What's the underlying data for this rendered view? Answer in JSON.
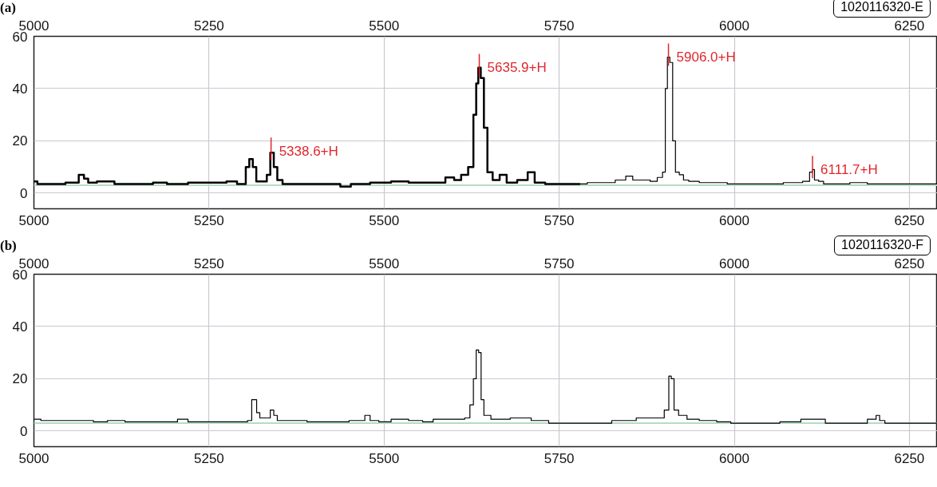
{
  "chart_data": [
    {
      "type": "step",
      "title": "(a)",
      "subtitle": "1020116320-E",
      "xlim": [
        5000,
        6290
      ],
      "xticks": [
        5000,
        5250,
        5500,
        5750,
        6000,
        6250
      ],
      "x2lim": [
        5000,
        6290
      ],
      "x2ticks": [
        5000,
        5250,
        5500,
        5750,
        6000,
        6250
      ],
      "ylim": [
        -6,
        60
      ],
      "yticks": [
        0,
        20,
        40,
        60
      ],
      "grid": true,
      "series": [
        {
          "color": "#000000",
          "x": [
            5000,
            5010,
            5030,
            5060,
            5068,
            5075,
            5080,
            5100,
            5130,
            5160,
            5180,
            5200,
            5240,
            5270,
            5280,
            5300,
            5305,
            5310,
            5315,
            5320,
            5330,
            5335,
            5340,
            5345,
            5350,
            5360,
            5400,
            5430,
            5445,
            5460,
            5500,
            5520,
            5550,
            5580,
            5595,
            5605,
            5615,
            5625,
            5630,
            5633,
            5636,
            5640,
            5645,
            5650,
            5660,
            5670,
            5680,
            5700,
            5710,
            5720,
            5740,
            5780
          ],
          "values": [
            4.5,
            3.5,
            3.5,
            4,
            7,
            5.5,
            4,
            4.5,
            3.5,
            3.5,
            4,
            3.5,
            4,
            4,
            4.5,
            3.5,
            10,
            13,
            10,
            4.5,
            4.5,
            7,
            15.5,
            10,
            5,
            3.5,
            3.5,
            3.5,
            2.5,
            3.5,
            4,
            4.5,
            4,
            4,
            6,
            5,
            7,
            10,
            30,
            42,
            48,
            44,
            25,
            8,
            5,
            7,
            4,
            5,
            8,
            4,
            3.5,
            3.5
          ]
        },
        {
          "color": "#000000",
          "x": [
            5780,
            5800,
            5820,
            5840,
            5850,
            5860,
            5875,
            5885,
            5895,
            5900,
            5903,
            5906,
            5910,
            5914,
            5918,
            5925,
            5930,
            5940,
            5960,
            5980,
            6000,
            6050,
            6090,
            6105,
            6110,
            6113,
            6116,
            6125,
            6130,
            6150,
            6180,
            6200,
            6250,
            6290
          ],
          "values": [
            3.5,
            4,
            4,
            5,
            6.5,
            5,
            5,
            4.5,
            6,
            8,
            40,
            52,
            50,
            20,
            8,
            7,
            5,
            4.5,
            4,
            4,
            3.5,
            3.5,
            4,
            4.5,
            8,
            9,
            5,
            4.5,
            3.5,
            3.5,
            4,
            3.5,
            3.5,
            3.5
          ]
        }
      ],
      "ref_lines": [
        {
          "axis": "y",
          "value": 3,
          "color": "#b5dcc4"
        }
      ],
      "annotations": [
        {
          "text": "5338.6+H",
          "x": 5338.6,
          "y": 16
        },
        {
          "text": "5635.9+H",
          "x": 5635.9,
          "y": 48
        },
        {
          "text": "5906.0+H",
          "x": 5906.0,
          "y": 52
        },
        {
          "text": "6111.7+H",
          "x": 6111.7,
          "y": 9
        }
      ]
    },
    {
      "type": "step",
      "title": "(b)",
      "subtitle": "1020116320-F",
      "xlim": [
        5000,
        6290
      ],
      "xticks": [
        5000,
        5250,
        5500,
        5750,
        6000,
        6250
      ],
      "x2lim": [
        5000,
        6290
      ],
      "x2ticks": [
        5000,
        5250,
        5500,
        5750,
        6000,
        6250
      ],
      "ylim": [
        -6,
        60
      ],
      "yticks": [
        0,
        20,
        40,
        60
      ],
      "grid": true,
      "series": [
        {
          "color": "#000000",
          "x": [
            5000,
            5020,
            5050,
            5070,
            5100,
            5110,
            5150,
            5200,
            5210,
            5230,
            5260,
            5300,
            5310,
            5312,
            5316,
            5320,
            5325,
            5335,
            5340,
            5345,
            5350,
            5380,
            5400,
            5430,
            5470,
            5475,
            5485,
            5500,
            5520,
            5550,
            5560,
            5580,
            5610,
            5620,
            5625,
            5630,
            5633,
            5637,
            5640,
            5645,
            5660,
            5700,
            5720,
            5750,
            5800,
            5850,
            5870,
            5895,
            5905,
            5908,
            5912,
            5916,
            5925,
            5940,
            5960,
            5990,
            6000,
            6050,
            6080,
            6110,
            6150,
            6180,
            6200,
            6205,
            6210,
            6220,
            6290
          ],
          "values": [
            4.5,
            4,
            4,
            4,
            3.5,
            4,
            3.5,
            3.5,
            4.5,
            3.5,
            3.5,
            3.5,
            4,
            12,
            12,
            7,
            5,
            5,
            8,
            6,
            4,
            4,
            3.5,
            3.5,
            4,
            6,
            4,
            3.5,
            4.5,
            4,
            3.5,
            4.5,
            4.5,
            5,
            10,
            20,
            31,
            30,
            12,
            6,
            4.5,
            5,
            4,
            3,
            3,
            4,
            5,
            5,
            8,
            21,
            20,
            8,
            6,
            4.5,
            4,
            3.5,
            3,
            3,
            3.5,
            4.5,
            3,
            3,
            4.5,
            6,
            4,
            3,
            3
          ]
        }
      ],
      "ref_lines": [
        {
          "axis": "y",
          "value": 3,
          "color": "#b5dcc4"
        }
      ]
    }
  ]
}
